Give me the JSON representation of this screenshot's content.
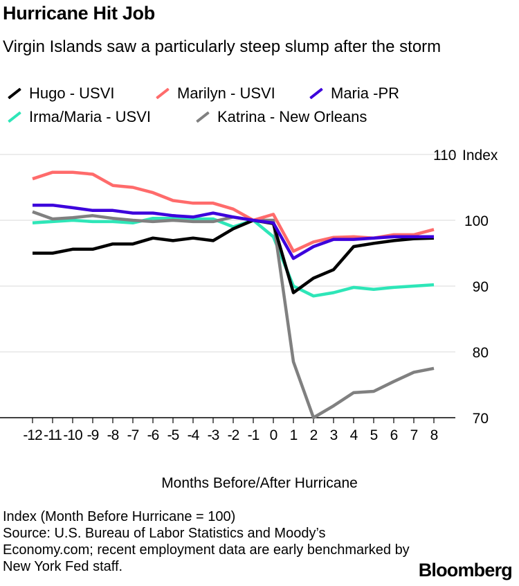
{
  "title": "Hurricane Hit Job",
  "subtitle": "Virgin Islands saw a particularly steep slump after the storm",
  "notes": {
    "line1": "Index (Month Before Hurricane = 100)",
    "line2": "Source: U.S. Bureau of Labor Statistics and Moody’s Economy.com; recent employment data are early benchmarked by New York Fed staff."
  },
  "brand": "Bloomberg",
  "chart_data": {
    "type": "line",
    "title": "Hurricane Hit Job",
    "subtitle": "Virgin Islands saw a particularly steep slump after the storm",
    "xlabel": "Months Before/After Hurricane",
    "ylabel": "Index",
    "y_unit_label": "Index",
    "ylim": [
      70,
      110
    ],
    "yticks": [
      70,
      80,
      90,
      100,
      110
    ],
    "x": [
      -12,
      -11,
      -10,
      -9,
      -8,
      -7,
      -6,
      -5,
      -4,
      -3,
      -2,
      -1,
      0,
      1,
      2,
      3,
      4,
      5,
      6,
      7,
      8
    ],
    "legend_position": "top",
    "series": [
      {
        "name": "Irma/Maria - USVI",
        "color": "#2ee6b8",
        "values": [
          99.6,
          99.8,
          100.0,
          99.8,
          99.8,
          99.6,
          100.3,
          100.3,
          100.2,
          100.2,
          99.0,
          100.0,
          97.5,
          90.0,
          88.5,
          89.0,
          89.8,
          89.5,
          89.8,
          90.0,
          90.2
        ]
      },
      {
        "name": "Katrina - New Orleans",
        "color": "#808080",
        "values": [
          101.3,
          100.2,
          100.4,
          100.7,
          100.3,
          100.0,
          99.8,
          100.0,
          99.8,
          99.8,
          100.5,
          100.0,
          100.0,
          78.5,
          70.0,
          71.8,
          73.8,
          74.0,
          75.5,
          76.9,
          77.5
        ]
      },
      {
        "name": "Hugo - USVI",
        "color": "#000000",
        "values": [
          95.0,
          95.0,
          95.6,
          95.6,
          96.4,
          96.4,
          97.3,
          96.9,
          97.3,
          96.9,
          98.7,
          100.0,
          99.5,
          89.0,
          91.2,
          92.5,
          96.0,
          96.5,
          96.9,
          97.2,
          97.3
        ]
      },
      {
        "name": "Marilyn - USVI",
        "color": "#ff6b6b",
        "values": [
          106.3,
          107.3,
          107.3,
          107.0,
          105.3,
          105.0,
          104.2,
          103.0,
          102.6,
          102.6,
          101.7,
          100.0,
          100.9,
          95.3,
          96.7,
          97.4,
          97.5,
          97.3,
          97.8,
          97.8,
          98.6
        ]
      },
      {
        "name": "Maria -PR",
        "color": "#3c00dc",
        "values": [
          102.3,
          102.3,
          101.9,
          101.5,
          101.5,
          101.1,
          101.1,
          100.7,
          100.5,
          101.1,
          100.5,
          100.0,
          99.6,
          94.2,
          96.0,
          97.1,
          97.1,
          97.3,
          97.5,
          97.5,
          97.5
        ]
      }
    ]
  },
  "legend": [
    {
      "label": "Hugo - USVI",
      "color": "#000000"
    },
    {
      "label": "Marilyn - USVI",
      "color": "#ff6b6b"
    },
    {
      "label": "Maria -PR",
      "color": "#3c00dc"
    },
    {
      "label": "Irma/Maria - USVI",
      "color": "#2ee6b8"
    },
    {
      "label": "Katrina - New Orleans",
      "color": "#808080"
    }
  ]
}
